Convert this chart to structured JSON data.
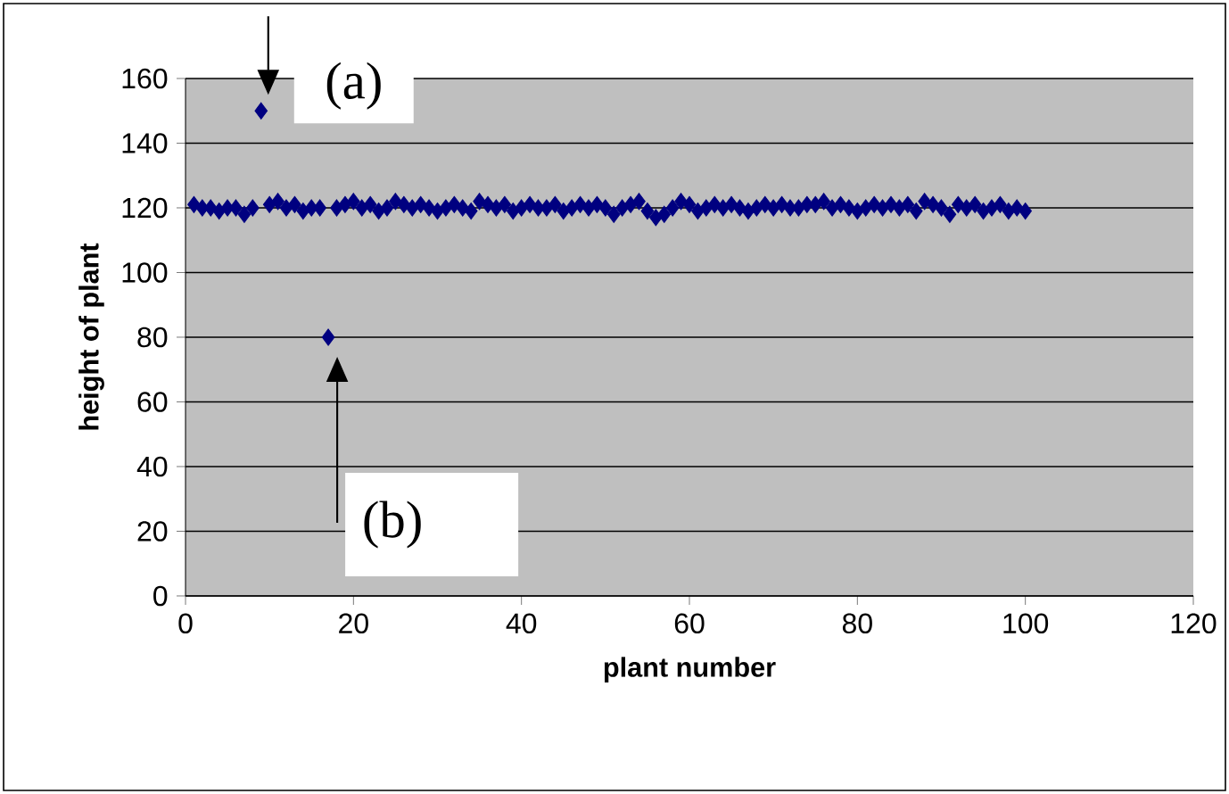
{
  "chart_data": {
    "type": "scatter",
    "xlabel": "plant number",
    "ylabel": "height of plant",
    "x": [
      1,
      2,
      3,
      4,
      5,
      6,
      7,
      8,
      9,
      10,
      11,
      12,
      13,
      14,
      15,
      16,
      17,
      18,
      19,
      20,
      21,
      22,
      23,
      24,
      25,
      26,
      27,
      28,
      29,
      30,
      31,
      32,
      33,
      34,
      35,
      36,
      37,
      38,
      39,
      40,
      41,
      42,
      43,
      44,
      45,
      46,
      47,
      48,
      49,
      50,
      51,
      52,
      53,
      54,
      55,
      56,
      57,
      58,
      59,
      60,
      61,
      62,
      63,
      64,
      65,
      66,
      67,
      68,
      69,
      70,
      71,
      72,
      73,
      74,
      75,
      76,
      77,
      78,
      79,
      80,
      81,
      82,
      83,
      84,
      85,
      86,
      87,
      88,
      89,
      90,
      91,
      92,
      93,
      94,
      95,
      96,
      97,
      98,
      99,
      100
    ],
    "series": [
      {
        "color": "#000080",
        "values": [
          121,
          120,
          120,
          119,
          120,
          120,
          118,
          120,
          150,
          121,
          122,
          120,
          121,
          119,
          120,
          120,
          80,
          120,
          121,
          122,
          120,
          121,
          119,
          120,
          122,
          121,
          120,
          121,
          120,
          119,
          120,
          121,
          120,
          119,
          122,
          121,
          120,
          121,
          119,
          120,
          121,
          120,
          120,
          121,
          119,
          120,
          121,
          120,
          121,
          120,
          118,
          120,
          121,
          122,
          119,
          117,
          118,
          120,
          122,
          121,
          119,
          120,
          121,
          120,
          121,
          120,
          119,
          120,
          121,
          120,
          121,
          120,
          120,
          121,
          121,
          122,
          120,
          121,
          120,
          119,
          120,
          121,
          120,
          121,
          120,
          121,
          119,
          122,
          121,
          120,
          118,
          121,
          120,
          121,
          119,
          120,
          121,
          119,
          120,
          119
        ]
      }
    ],
    "xlim": [
      0,
      120
    ],
    "xticks": [
      0,
      20,
      40,
      60,
      80,
      100,
      120
    ],
    "ylim": [
      0,
      160
    ],
    "yticks": [
      0,
      20,
      40,
      60,
      80,
      100,
      120,
      140,
      160
    ],
    "grid": "y",
    "marker": "diamond",
    "annotations": [
      {
        "text": "(a)",
        "x": 9,
        "y": 150
      },
      "(b)"
    ]
  }
}
